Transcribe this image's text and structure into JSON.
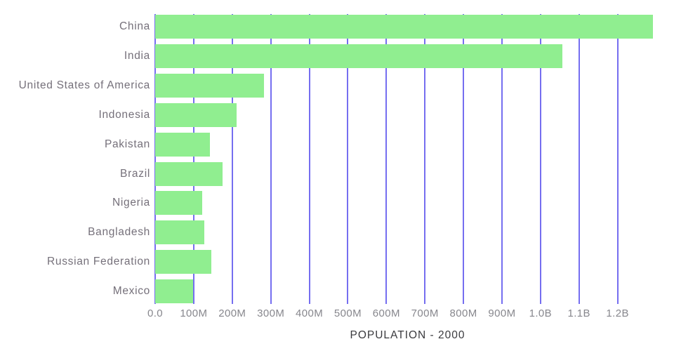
{
  "chart_data": {
    "type": "bar",
    "orientation": "horizontal",
    "title": "",
    "xlabel": "POPULATION - 2000",
    "ylabel": "",
    "legend": "none",
    "grid": "vertical gridlines on, drawn behind bars",
    "categories": [
      "China",
      "India",
      "United States of America",
      "Indonesia",
      "Pakistan",
      "Brazil",
      "Nigeria",
      "Bangladesh",
      "Russian Federation",
      "Mexico"
    ],
    "series": [
      {
        "name": "Population 2000",
        "values_millions": [
          1291,
          1057,
          282,
          212,
          142,
          175,
          122,
          128,
          146,
          99
        ]
      }
    ],
    "x_ticks": [
      {
        "value_millions": 0,
        "label": "0.0"
      },
      {
        "value_millions": 100,
        "label": "100M"
      },
      {
        "value_millions": 200,
        "label": "200M"
      },
      {
        "value_millions": 300,
        "label": "300M"
      },
      {
        "value_millions": 400,
        "label": "400M"
      },
      {
        "value_millions": 500,
        "label": "500M"
      },
      {
        "value_millions": 600,
        "label": "600M"
      },
      {
        "value_millions": 700,
        "label": "700M"
      },
      {
        "value_millions": 800,
        "label": "800M"
      },
      {
        "value_millions": 900,
        "label": "900M"
      },
      {
        "value_millions": 1000,
        "label": "1.0B"
      },
      {
        "value_millions": 1100,
        "label": "1.1B"
      },
      {
        "value_millions": 1200,
        "label": "1.2B"
      }
    ],
    "xlim_millions": [
      0,
      1310
    ],
    "colors": {
      "bar": "#90ee90",
      "gridline": "#756ef0",
      "category_label": "#75707a",
      "tick_label": "#87878d",
      "axis_title": "#3a3a3e",
      "background": "#ffffff"
    }
  }
}
